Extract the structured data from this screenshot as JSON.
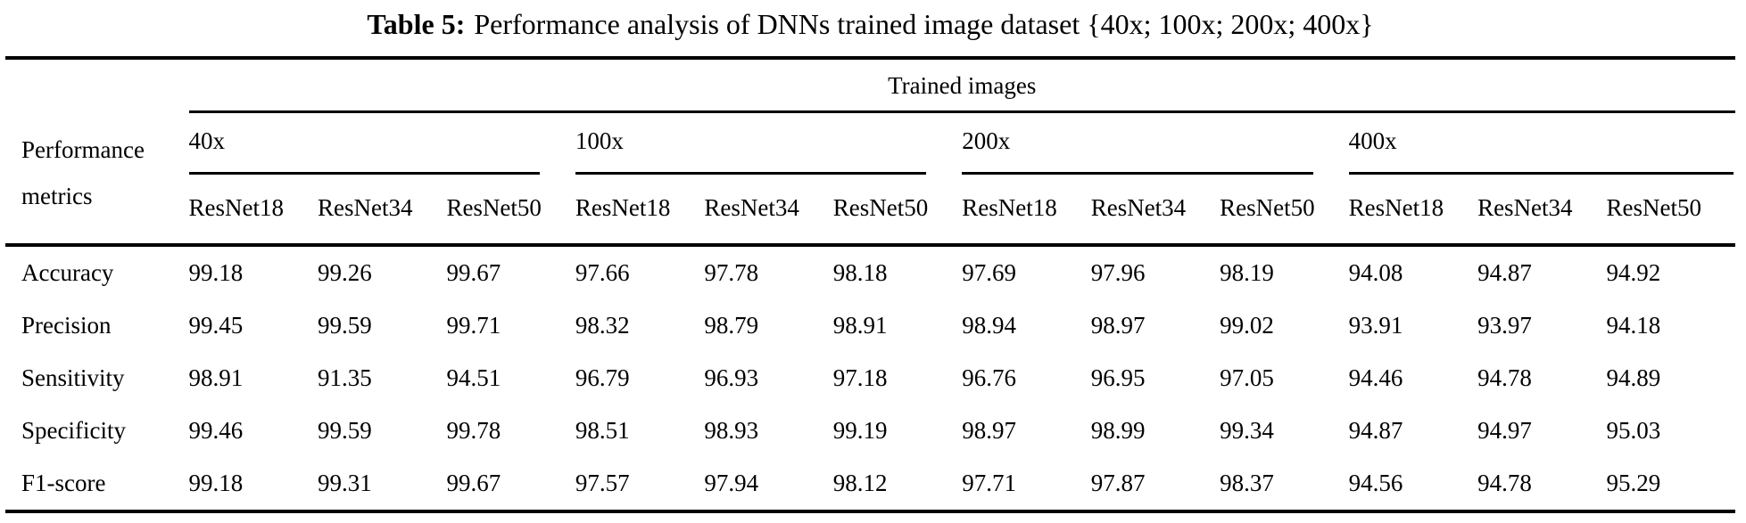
{
  "title": {
    "label": "Table 5:",
    "text": "Performance analysis of DNNs trained image dataset {40x; 100x; 200x; 400x}"
  },
  "table": {
    "top_header": "Trained images",
    "row_header": {
      "line1": "Performance",
      "line2": "metrics"
    },
    "groups": [
      {
        "label": "40x",
        "columns": [
          "ResNet18",
          "ResNet34",
          "ResNet50"
        ]
      },
      {
        "label": "100x",
        "columns": [
          "ResNet18",
          "ResNet34",
          "ResNet50"
        ]
      },
      {
        "label": "200x",
        "columns": [
          "ResNet18",
          "ResNet34",
          "ResNet50"
        ]
      },
      {
        "label": "400x",
        "columns": [
          "ResNet18",
          "ResNet34",
          "ResNet50"
        ]
      }
    ],
    "rows": [
      {
        "metric": "Accuracy",
        "values": [
          "99.18",
          "99.26",
          "99.67",
          "97.66",
          "97.78",
          "98.18",
          "97.69",
          "97.96",
          "98.19",
          "94.08",
          "94.87",
          "94.92"
        ]
      },
      {
        "metric": "Precision",
        "values": [
          "99.45",
          "99.59",
          "99.71",
          "98.32",
          "98.79",
          "98.91",
          "98.94",
          "98.97",
          "99.02",
          "93.91",
          "93.97",
          "94.18"
        ]
      },
      {
        "metric": "Sensitivity",
        "values": [
          "98.91",
          "91.35",
          "94.51",
          "96.79",
          "96.93",
          "97.18",
          "96.76",
          "96.95",
          "97.05",
          "94.46",
          "94.78",
          "94.89"
        ]
      },
      {
        "metric": "Specificity",
        "values": [
          "99.46",
          "99.59",
          "99.78",
          "98.51",
          "98.93",
          "99.19",
          "98.97",
          "98.99",
          "99.34",
          "94.87",
          "94.97",
          "95.03"
        ]
      },
      {
        "metric": "F1-score",
        "values": [
          "99.18",
          "99.31",
          "99.67",
          "97.57",
          "97.94",
          "98.12",
          "97.71",
          "97.87",
          "98.37",
          "94.56",
          "94.78",
          "95.29"
        ]
      }
    ]
  }
}
